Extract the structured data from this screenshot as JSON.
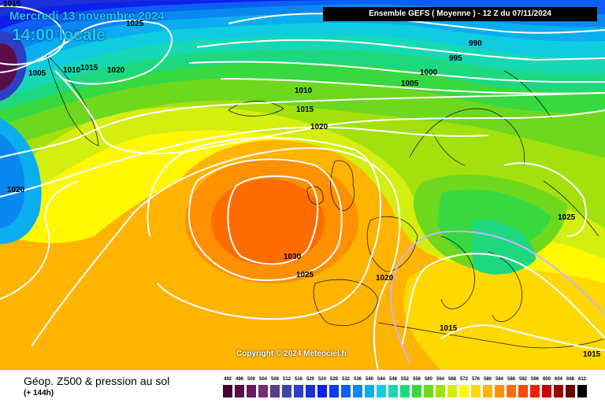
{
  "header": {
    "date": "Mercredi 13 novembre 2024",
    "time": "14:00 locale",
    "model": "Ensemble GEFS  ( Moyenne )  -  12 Z du 07/11/2024"
  },
  "map": {
    "copyright": "Copyright © 2024 Meteociel.fr",
    "isobars": [
      "1015",
      "1025",
      "1005",
      "1010",
      "1015",
      "1020",
      "990",
      "995",
      "1000",
      "1005",
      "1010",
      "1015",
      "1020",
      "1020",
      "1025",
      "1030",
      "1025",
      "1020",
      "1015",
      "1015"
    ],
    "highlight_isobar": "1020"
  },
  "footer": {
    "title": "Géop. Z500 & pression au sol",
    "subtitle": "(+ 144h)"
  },
  "legend": [
    {
      "label": "492",
      "color": "#4b0033"
    },
    {
      "label": "496",
      "color": "#5b0d4a"
    },
    {
      "label": "500",
      "color": "#6a1a60"
    },
    {
      "label": "504",
      "color": "#7a2a78"
    },
    {
      "label": "508",
      "color": "#5a3a8c"
    },
    {
      "label": "512",
      "color": "#3e46a8"
    },
    {
      "label": "516",
      "color": "#2d3fc4"
    },
    {
      "label": "520",
      "color": "#1c2fd8"
    },
    {
      "label": "524",
      "color": "#0c1fec"
    },
    {
      "label": "528",
      "color": "#0a3cf2"
    },
    {
      "label": "532",
      "color": "#0a60f2"
    },
    {
      "label": "536",
      "color": "#0a88f0"
    },
    {
      "label": "540",
      "color": "#0aaeee"
    },
    {
      "label": "544",
      "color": "#0fcce0"
    },
    {
      "label": "548",
      "color": "#16d8b4"
    },
    {
      "label": "552",
      "color": "#1ed880"
    },
    {
      "label": "556",
      "color": "#38d840"
    },
    {
      "label": "560",
      "color": "#6ed81e"
    },
    {
      "label": "564",
      "color": "#a4e00e"
    },
    {
      "label": "568",
      "color": "#d4ee10"
    },
    {
      "label": "572",
      "color": "#fff800"
    },
    {
      "label": "576",
      "color": "#ffd800"
    },
    {
      "label": "580",
      "color": "#ffb400"
    },
    {
      "label": "584",
      "color": "#ff9000"
    },
    {
      "label": "588",
      "color": "#ff6c00"
    },
    {
      "label": "592",
      "color": "#ff4800"
    },
    {
      "label": "596",
      "color": "#f02000"
    },
    {
      "label": "600",
      "color": "#c80000"
    },
    {
      "label": "604",
      "color": "#960000"
    },
    {
      "label": "608",
      "color": "#640000"
    },
    {
      "label": "612",
      "color": "#000000"
    }
  ]
}
